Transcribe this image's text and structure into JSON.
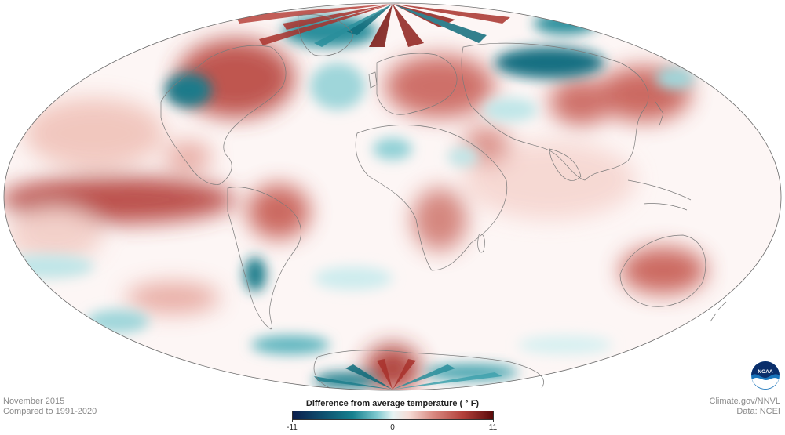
{
  "map": {
    "projection": "Mollweide",
    "colors": {
      "ocean_neutral": "#ffffff",
      "warm_light": "#f3c9c1",
      "warm_mid": "#d98a82",
      "warm_strong": "#a8322c",
      "cool_light": "#bfe6e8",
      "cool_mid": "#3fa2ad",
      "cool_strong": "#0c4f68",
      "border": "#7a7a7a"
    }
  },
  "footer": {
    "date": "November 2015",
    "baseline": "Compared to 1991-2020",
    "source_line1": "Climate.gov/NNVL",
    "source_line2": "Data: NCEI"
  },
  "legend": {
    "title": "Difference from average temperature  ( ° F)",
    "min_label": "-11",
    "mid_label": "0",
    "max_label": "11",
    "range": [
      -11,
      11
    ]
  },
  "logo": {
    "text": "NOAA",
    "name": "noaa-logo"
  }
}
